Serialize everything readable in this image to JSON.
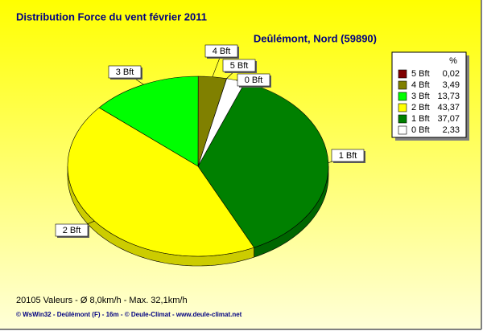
{
  "chart_data": {
    "type": "pie",
    "title": "Distribution Force du vent  février 2011",
    "subtitle": "Deûlémont, Nord (59890)",
    "legend_header": "%",
    "legend": "right",
    "series": [
      {
        "name": "5 Bft",
        "color": "#800000",
        "values": [
          0.02
        ],
        "value_labels": [
          "0,02"
        ]
      },
      {
        "name": "4 Bft",
        "color": "#808000",
        "values": [
          3.49
        ],
        "value_labels": [
          "3,49"
        ]
      },
      {
        "name": "3 Bft",
        "color": "#00ff00",
        "values": [
          13.73
        ],
        "value_labels": [
          "13,73"
        ]
      },
      {
        "name": "2 Bft",
        "color": "#ffff00",
        "values": [
          43.37
        ],
        "value_labels": [
          "43,37"
        ]
      },
      {
        "name": "1 Bft",
        "color": "#008000",
        "values": [
          37.07
        ],
        "value_labels": [
          "37,07"
        ]
      },
      {
        "name": "0 Bft",
        "color": "#ffffff",
        "values": [
          2.33
        ],
        "value_labels": [
          "2,33"
        ]
      }
    ],
    "footer": "20105 Valeurs   -   Ø 8,0km/h  -  Max. 32,1km/h",
    "credit": "© WsWin32  -  Deûlémont (F) - 16m  -  © Deule-Climat - www.deule-climat.net"
  }
}
